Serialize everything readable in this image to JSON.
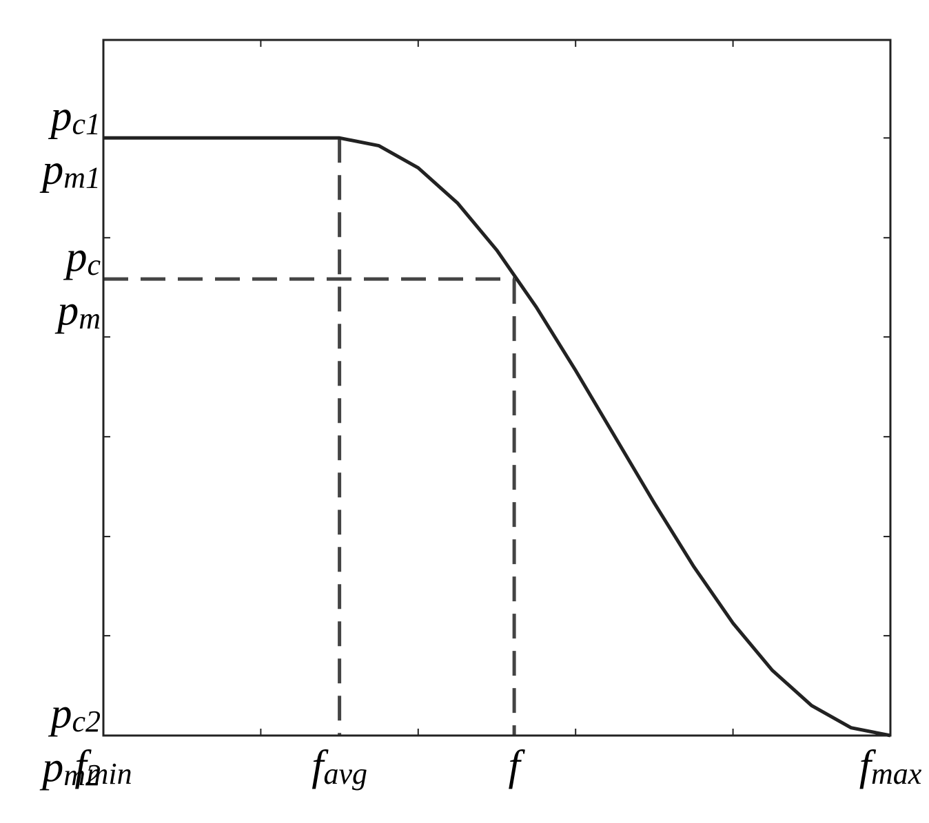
{
  "chart_data": {
    "type": "line",
    "x": [
      0,
      0.3,
      0.35,
      0.4,
      0.45,
      0.5,
      0.55,
      0.6,
      0.65,
      0.7,
      0.75,
      0.8,
      0.85,
      0.9,
      0.95,
      1.0
    ],
    "series": [
      {
        "color": "#222222",
        "values": [
          1,
          1,
          0.987,
          0.95,
          0.891,
          0.812,
          0.717,
          0.611,
          0.5,
          0.389,
          0.283,
          0.188,
          0.109,
          0.05,
          0.013,
          0
        ]
      }
    ],
    "xlim": [
      0,
      1
    ],
    "ylim": [
      0,
      1.164
    ],
    "xticks": [
      {
        "value": 0,
        "label": "fmin"
      },
      {
        "value": 0.3,
        "label": "favg"
      },
      {
        "value": 0.522,
        "label": "f"
      },
      {
        "value": 1,
        "label": "fmax"
      }
    ],
    "yticks": [
      {
        "value": 0,
        "label": [
          "pc2",
          "pm2"
        ]
      },
      {
        "value": 0.764,
        "label": [
          "pc",
          "pm"
        ]
      },
      {
        "value": 1,
        "label": [
          "pc1",
          "pm1"
        ]
      }
    ],
    "minor_xticks": [
      0.2,
      0.4,
      0.6,
      0.8
    ],
    "minor_yticks": [
      0.167,
      0.333,
      0.5,
      0.667,
      0.833,
      1
    ]
  }
}
